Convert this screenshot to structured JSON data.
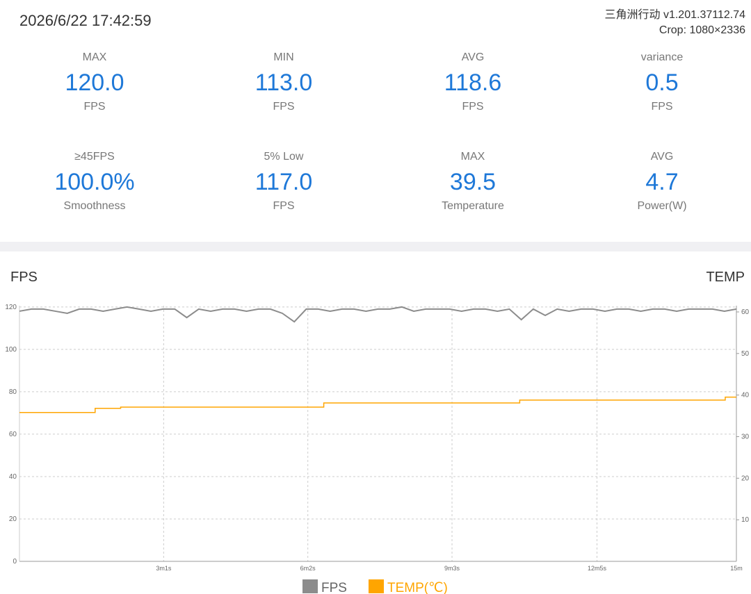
{
  "header": {
    "datetime": "2026/6/22 17:42:59",
    "app": "三角洲行动 v1.201.37112.74",
    "crop": "Crop: 1080×2336"
  },
  "stats": [
    {
      "label": "MAX",
      "value": "120.0",
      "unit": "FPS"
    },
    {
      "label": "MIN",
      "value": "113.0",
      "unit": "FPS"
    },
    {
      "label": "AVG",
      "value": "118.6",
      "unit": "FPS"
    },
    {
      "label": "variance",
      "value": "0.5",
      "unit": "FPS"
    },
    {
      "label": "≥45FPS",
      "value": "100.0%",
      "unit": "Smoothness"
    },
    {
      "label": "5% Low",
      "value": "117.0",
      "unit": "FPS"
    },
    {
      "label": "MAX",
      "value": "39.5",
      "unit": "Temperature"
    },
    {
      "label": "AVG",
      "value": "4.7",
      "unit": "Power(W)"
    }
  ],
  "chart_data": {
    "type": "line",
    "y_label": "FPS",
    "y2_label": "TEMP",
    "xlim": [
      0,
      900
    ],
    "xticks": [
      {
        "value": 181,
        "label": "3m1s"
      },
      {
        "value": 362,
        "label": "6m2s"
      },
      {
        "value": 543,
        "label": "9m3s"
      },
      {
        "value": 725,
        "label": "12m5s"
      },
      {
        "value": 900,
        "label": "15m"
      }
    ],
    "ylim": [
      0,
      120.6
    ],
    "yticks": [
      0,
      20,
      40,
      60,
      80,
      100,
      120
    ],
    "y2lim": [
      0,
      61.5
    ],
    "y2ticks": [
      10,
      20,
      30,
      40,
      50,
      60
    ],
    "grid": true,
    "series": [
      {
        "name": "FPS",
        "color": "#8c8c8c",
        "x": [
          0,
          15,
          30,
          45,
          60,
          75,
          90,
          105,
          120,
          135,
          150,
          165,
          180,
          195,
          210,
          225,
          240,
          255,
          270,
          285,
          300,
          315,
          330,
          345,
          360,
          375,
          390,
          405,
          420,
          435,
          450,
          465,
          480,
          495,
          510,
          525,
          540,
          555,
          570,
          585,
          600,
          615,
          630,
          645,
          660,
          675,
          690,
          705,
          720,
          735,
          750,
          765,
          780,
          795,
          810,
          825,
          840,
          855,
          870,
          885,
          900
        ],
        "values": [
          118,
          119,
          119,
          118,
          117,
          119,
          119,
          118,
          119,
          120,
          119,
          118,
          119,
          119,
          115,
          119,
          118,
          119,
          119,
          118,
          119,
          119,
          117,
          113,
          119,
          119,
          118,
          119,
          119,
          118,
          119,
          119,
          120,
          118,
          119,
          119,
          119,
          118,
          119,
          119,
          118,
          119,
          114,
          119,
          116,
          119,
          118,
          119,
          119,
          118,
          119,
          119,
          118,
          119,
          119,
          118,
          119,
          119,
          119,
          118,
          119
        ]
      },
      {
        "name": "TEMP(℃)",
        "color": "#ffa500",
        "axis": "y2",
        "x": [
          0,
          95,
          95,
          127,
          127,
          382,
          382,
          628,
          628,
          886,
          886,
          900
        ],
        "values": [
          35.8,
          35.8,
          36.8,
          36.8,
          37.1,
          37.1,
          38.1,
          38.1,
          38.8,
          38.8,
          39.5,
          39.5
        ]
      }
    ]
  }
}
